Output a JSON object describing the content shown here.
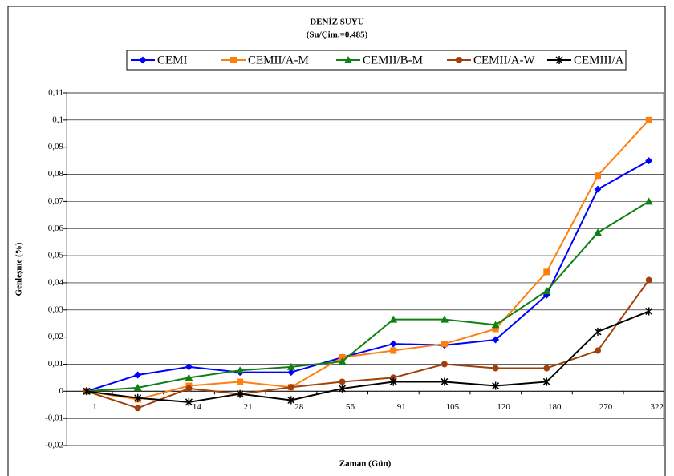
{
  "chart_data": {
    "type": "line",
    "title": "DENİZ SUYU",
    "subtitle": "(Su/Çim.=0,485)",
    "x_label": "Zaman (Gün)",
    "y_label": "Genleşme (%)",
    "categories": [
      "1",
      null,
      "14",
      "21",
      "28",
      "56",
      "91",
      "105",
      "120",
      "180",
      "270",
      "322"
    ],
    "series": [
      {
        "name": "CEMI",
        "color": "#0000ff",
        "marker": "diamond",
        "values": [
          0,
          0.006,
          0.009,
          0.007,
          0.007,
          0.0125,
          0.0175,
          0.017,
          0.019,
          0.0355,
          0.0745,
          0.085
        ]
      },
      {
        "name": "CEMII/A-M",
        "color": "#ff7f0e",
        "marker": "square",
        "values": [
          0,
          -0.003,
          0.002,
          0.0035,
          0.0015,
          0.0125,
          0.015,
          0.0175,
          0.023,
          0.044,
          0.0795,
          0.1
        ]
      },
      {
        "name": "CEMII/B-M",
        "color": "#108010",
        "marker": "triangle",
        "values": [
          0,
          0.0013,
          0.005,
          0.0077,
          0.009,
          0.011,
          0.0265,
          0.0265,
          0.0245,
          0.037,
          0.0585,
          0.07
        ]
      },
      {
        "name": "CEMII/A-W",
        "color": "#a0400a",
        "marker": "circle",
        "values": [
          0,
          -0.0062,
          0.001,
          -0.001,
          0.0015,
          0.0035,
          0.005,
          0.01,
          0.0085,
          0.0085,
          0.015,
          0.041
        ]
      },
      {
        "name": "CEMIII/A",
        "color": "#000000",
        "marker": "star",
        "values": [
          0,
          -0.0025,
          -0.004,
          -0.001,
          -0.0033,
          0.001,
          0.0035,
          0.0035,
          0.002,
          0.0035,
          0.022,
          0.0295
        ]
      }
    ],
    "ylim": [
      -0.02,
      0.11
    ],
    "yticks": [
      {
        "value": -0.02,
        "label": "-0,02"
      },
      {
        "value": -0.01,
        "label": "-0,01"
      },
      0,
      {
        "value": 0.01,
        "label": "0,01"
      },
      {
        "value": 0.02,
        "label": "0,02"
      },
      {
        "value": 0.03,
        "label": "0,03"
      },
      {
        "value": 0.04,
        "label": "0,04"
      },
      {
        "value": 0.05,
        "label": "0,05"
      },
      {
        "value": 0.06,
        "label": "0,06"
      },
      {
        "value": 0.07,
        "label": "0,07"
      },
      {
        "value": 0.08,
        "label": "0,08"
      },
      {
        "value": 0.09,
        "label": "0,09"
      },
      {
        "value": 0.1,
        "label": "0,1"
      },
      {
        "value": 0.11,
        "label": "0,11"
      }
    ],
    "grid": true,
    "legend": "top"
  }
}
